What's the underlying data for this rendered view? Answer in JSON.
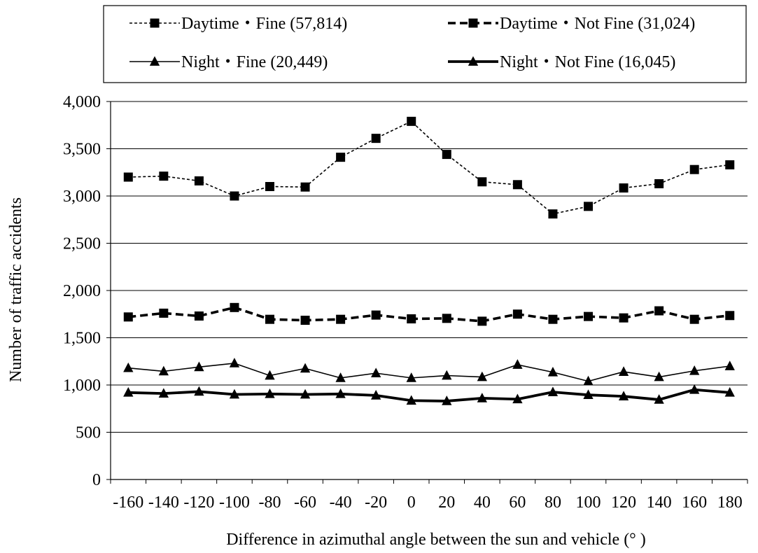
{
  "chart_data": {
    "type": "line",
    "xlabel": "Difference in azimuthal angle between the sun and vehicle (° )",
    "ylabel": "Number of  traffic accidents",
    "ylim": [
      0,
      4000
    ],
    "yticks": [
      0,
      500,
      1000,
      1500,
      2000,
      2500,
      3000,
      3500,
      4000
    ],
    "ytick_labels": [
      "0",
      "500",
      "1,000",
      "1,500",
      "2,000",
      "2,500",
      "3,000",
      "3,500",
      "4,000"
    ],
    "x": [
      -160,
      -140,
      -120,
      -100,
      -80,
      -60,
      -40,
      -20,
      0,
      20,
      40,
      60,
      80,
      100,
      120,
      140,
      160,
      180
    ],
    "xtick_labels": [
      "-160",
      "-140",
      "-120",
      "-100",
      "-80",
      "-60",
      "-40",
      "-20",
      "0",
      "20",
      "40",
      "60",
      "80",
      "100",
      "120",
      "140",
      "160",
      "180"
    ],
    "grid": "horizontal",
    "legend_placement": "top",
    "series": [
      {
        "name": "Daytime・Fine (57,814)",
        "line": "dotted-thin",
        "marker": "square",
        "values": [
          3200,
          3210,
          3160,
          3000,
          3100,
          3095,
          3410,
          3610,
          3790,
          3440,
          3150,
          3120,
          2810,
          2890,
          3085,
          3130,
          3280,
          3330
        ]
      },
      {
        "name": "Daytime・Not Fine (31,024)",
        "line": "dashed-thick",
        "marker": "square",
        "values": [
          1720,
          1760,
          1730,
          1820,
          1695,
          1685,
          1695,
          1740,
          1700,
          1705,
          1675,
          1750,
          1695,
          1725,
          1710,
          1785,
          1695,
          1735
        ]
      },
      {
        "name": "Night・Fine (20,449)",
        "line": "solid-thin",
        "marker": "triangle",
        "values": [
          1180,
          1145,
          1190,
          1230,
          1100,
          1175,
          1075,
          1125,
          1075,
          1100,
          1085,
          1215,
          1135,
          1040,
          1140,
          1085,
          1150,
          1200
        ]
      },
      {
        "name": "Night・Not Fine (16,045)",
        "line": "solid-thick",
        "marker": "triangle",
        "values": [
          920,
          910,
          930,
          900,
          905,
          900,
          905,
          890,
          835,
          830,
          860,
          850,
          925,
          895,
          880,
          845,
          950,
          920
        ]
      }
    ]
  }
}
